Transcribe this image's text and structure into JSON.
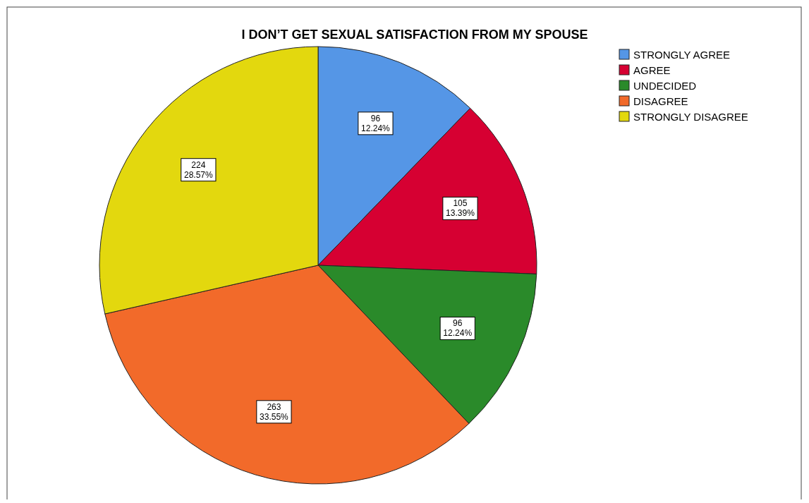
{
  "chart_data": {
    "type": "pie",
    "title": "I DON’T GET SEXUAL SATISFACTION FROM MY SPOUSE",
    "categories": [
      "STRONGLY AGREE",
      "AGREE",
      "UNDECIDED",
      "DISAGREE",
      "STRONGLY DISAGREE"
    ],
    "values": [
      96,
      105,
      96,
      263,
      224
    ],
    "colors": [
      "#5596e6",
      "#d60032",
      "#2a8a2a",
      "#f26a2a",
      "#e3d80e"
    ],
    "value_labels": [
      "96\n12.24%",
      "105\n13.39%",
      "96\n12.24%",
      "263\n33.55%",
      "224\n28.57%"
    ],
    "legend": "top right"
  }
}
